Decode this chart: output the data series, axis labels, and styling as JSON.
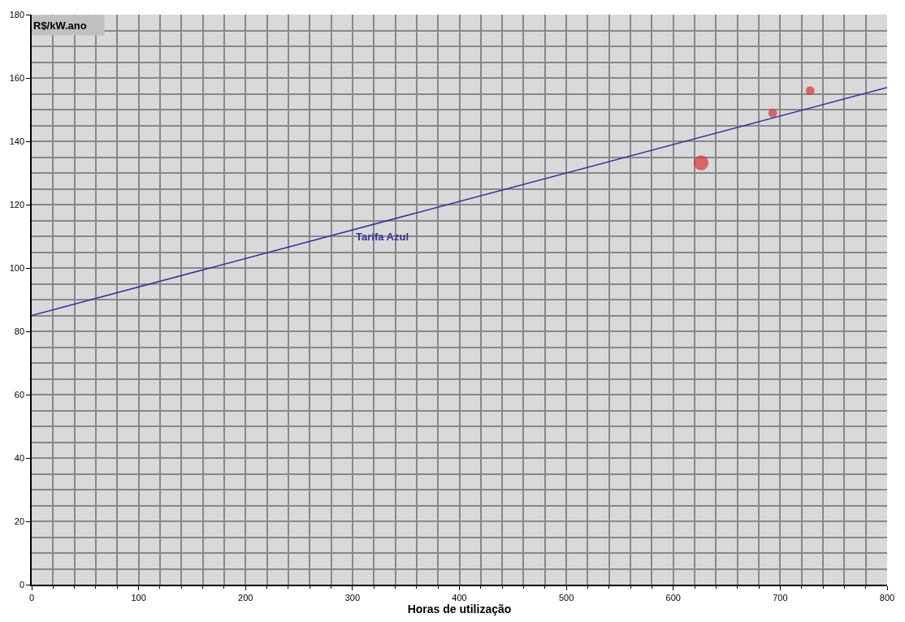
{
  "chart_data": {
    "type": "bubble",
    "xlabel": "Horas de utilização",
    "ylabel": "R$/kW.ano",
    "xlim": [
      0,
      800
    ],
    "ylim": [
      0,
      180
    ],
    "xticks": [
      0,
      100,
      200,
      300,
      400,
      500,
      600,
      700,
      800
    ],
    "yticks": [
      0,
      20,
      40,
      60,
      80,
      100,
      120,
      140,
      160,
      180
    ],
    "grid": true,
    "legend": false,
    "series": [
      {
        "type": "line",
        "name": "Tarifa Azul",
        "color": "#3333a0",
        "x": [
          0,
          800
        ],
        "values": [
          85,
          157
        ],
        "marker": "none",
        "line_style": "solid"
      },
      {
        "color": "#d93535",
        "x": [
          626,
          693,
          728
        ],
        "values": [
          133.2,
          148.9,
          156
        ],
        "sizes": [
          1,
          0.35,
          0.35
        ]
      }
    ]
  }
}
